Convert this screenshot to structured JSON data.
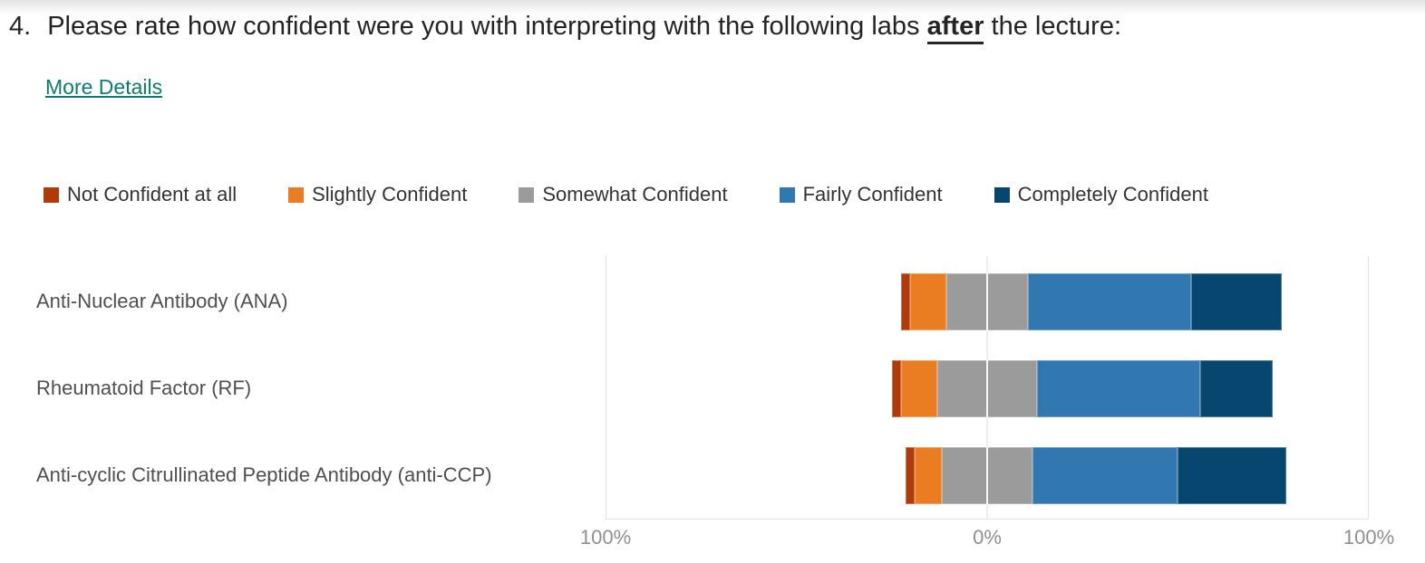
{
  "question": {
    "number": "4.",
    "title_prefix": "Please rate how confident were you with interpreting with the following labs ",
    "title_emphasis": "after",
    "title_suffix": " the lecture:",
    "more_details_label": "More Details"
  },
  "colors": {
    "link_teal": "#0f7b70",
    "title_text": "#242424",
    "row_label_text": "#4f4f4f",
    "axis_text": "#8f8f8f",
    "plot_border": "#e2e2e2",
    "not_confident_red": "#b13a0b",
    "slightly_orange": "#ea7c22",
    "somewhat_gray": "#9b9b9b",
    "fairly_blue": "#3078af",
    "completely_navy": "#07476f"
  },
  "chart_data": {
    "type": "bar",
    "variant": "diverging-stacked-horizontal",
    "title": "",
    "categories": [
      "Anti-Nuclear Antibody (ANA)",
      "Rheumatoid Factor (RF)",
      "Anti-cyclic Citrullinated Peptide Antibody (anti-CCP)"
    ],
    "series": [
      {
        "name": "Not Confident at all",
        "color": "#b13a0b",
        "values": [
          2.4,
          2.4,
          2.4
        ]
      },
      {
        "name": "Slightly Confident",
        "color": "#ea7c22",
        "values": [
          9.5,
          9.5,
          7.1
        ]
      },
      {
        "name": "Somewhat Confident",
        "color": "#9b9b9b",
        "values": [
          21.4,
          26.2,
          23.8
        ]
      },
      {
        "name": "Fairly Confident",
        "color": "#3078af",
        "values": [
          42.9,
          42.9,
          38.1
        ]
      },
      {
        "name": "Completely Confident",
        "color": "#07476f",
        "values": [
          23.8,
          19.0,
          28.6
        ]
      }
    ],
    "values_unit": "percent_of_responses",
    "center_category": "Somewhat Confident",
    "x_axis": {
      "ticks": [
        "100%",
        "0%",
        "100%"
      ],
      "range_percent": [
        -100,
        100
      ],
      "gridline_at_zero": true
    },
    "legend_position": "top",
    "orientation": "horizontal"
  }
}
